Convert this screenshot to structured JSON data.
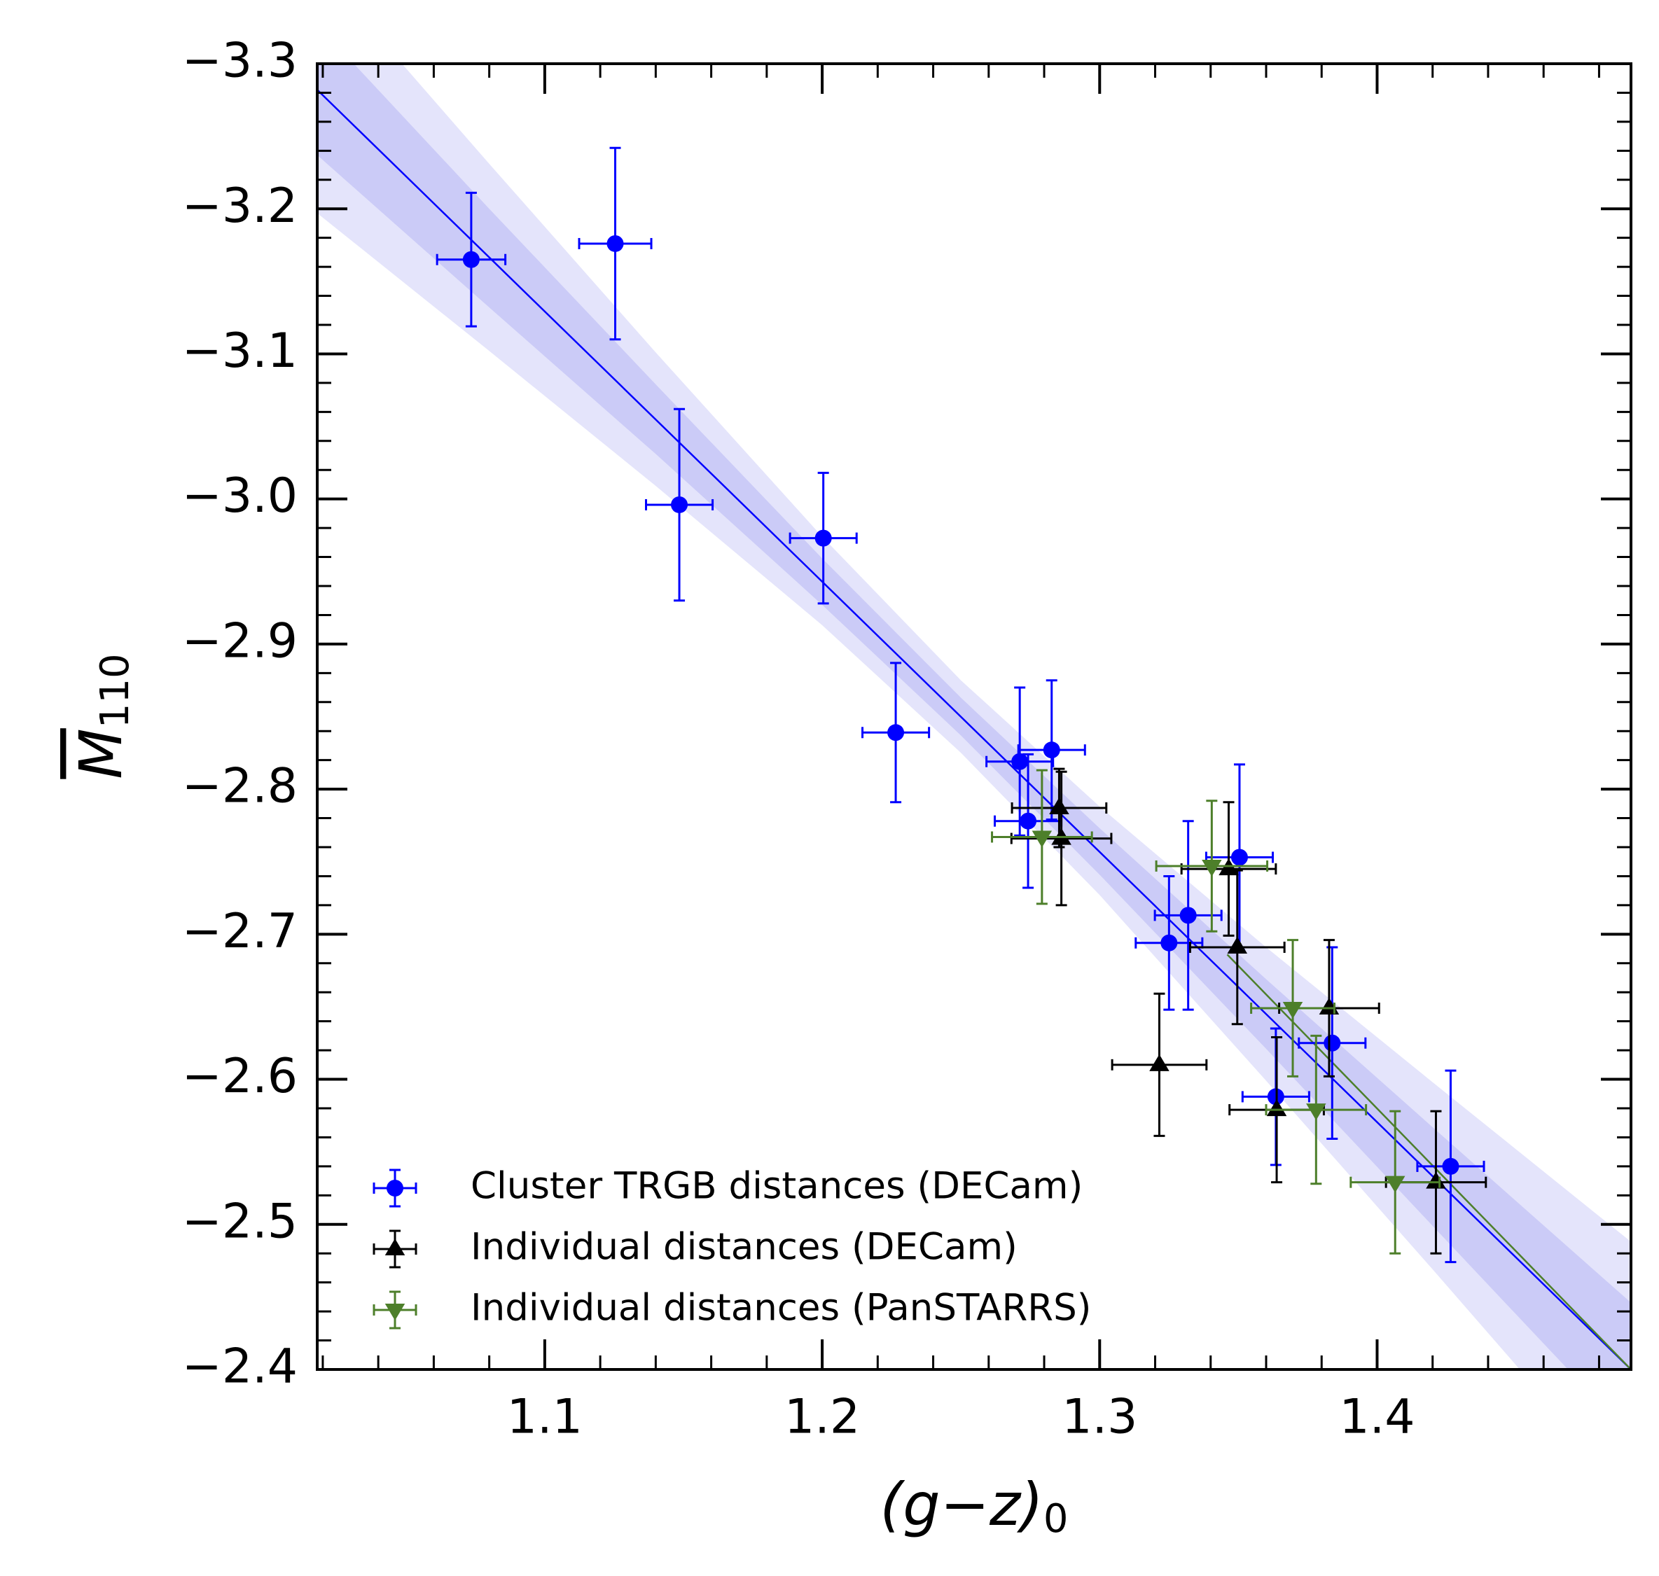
{
  "chart_data": {
    "type": "errorbar-scatter",
    "xlabel": {
      "text": "(g−z)",
      "subscript": "0"
    },
    "ylabel": {
      "symbol": "M",
      "subscript": "110"
    },
    "xlim": [
      1.018,
      1.4915
    ],
    "ylim": [
      -2.4,
      -3.3
    ],
    "xticks": [
      1.1,
      1.2,
      1.3,
      1.4
    ],
    "yticks": [
      {
        "value": -3.3,
        "label": "−3.3"
      },
      {
        "value": -3.2,
        "label": "−3.2"
      },
      {
        "value": -3.1,
        "label": "−3.1"
      },
      {
        "value": -3.0,
        "label": "−3.0"
      },
      {
        "value": -2.9,
        "label": "−2.9"
      },
      {
        "value": -2.8,
        "label": "−2.8"
      },
      {
        "value": -2.7,
        "label": "−2.7"
      },
      {
        "value": -2.6,
        "label": "−2.6"
      },
      {
        "value": -2.5,
        "label": "−2.5"
      },
      {
        "value": -2.4,
        "label": "−2.4"
      }
    ],
    "xminor": [
      1.02,
      1.04,
      1.06,
      1.08,
      1.12,
      1.14,
      1.16,
      1.18,
      1.22,
      1.24,
      1.26,
      1.28,
      1.32,
      1.34,
      1.36,
      1.38,
      1.42,
      1.44,
      1.46,
      1.48
    ],
    "yminor": [
      -3.28,
      -3.26,
      -3.24,
      -3.22,
      -3.18,
      -3.16,
      -3.14,
      -3.12,
      -3.08,
      -3.06,
      -3.04,
      -3.02,
      -2.98,
      -2.96,
      -2.94,
      -2.92,
      -2.88,
      -2.86,
      -2.84,
      -2.82,
      -2.78,
      -2.76,
      -2.74,
      -2.72,
      -2.68,
      -2.66,
      -2.64,
      -2.62,
      -2.58,
      -2.56,
      -2.54,
      -2.52,
      -2.48,
      -2.46,
      -2.44,
      -2.42
    ],
    "legend": "lower left",
    "bands": [
      {
        "color": "#e4e4fb",
        "x": [
          1.018,
          1.08,
          1.14,
          1.2,
          1.25,
          1.3,
          1.36,
          1.42,
          1.4915
        ],
        "lower": [
          -3.367,
          -3.231,
          -3.101,
          -2.974,
          -2.875,
          -2.788,
          -2.691,
          -2.598,
          -2.488
        ],
        "upper": [
          -3.197,
          -3.102,
          -3.009,
          -2.913,
          -2.825,
          -2.727,
          -2.599,
          -2.469,
          -2.312
        ]
      },
      {
        "color": "#cbcbf7",
        "x": [
          1.018,
          1.08,
          1.14,
          1.2,
          1.25,
          1.3,
          1.36,
          1.42,
          1.4915
        ],
        "lower": [
          -3.327,
          -3.2,
          -3.079,
          -2.959,
          -2.863,
          -2.773,
          -2.669,
          -2.567,
          -2.446
        ],
        "upper": [
          -3.237,
          -3.132,
          -3.031,
          -2.927,
          -2.837,
          -2.741,
          -2.621,
          -2.499,
          -2.354
        ]
      }
    ],
    "fits": [
      {
        "color": "#0000ff",
        "x": [
          1.018,
          1.4915
        ],
        "values": [
          -3.282,
          -2.4
        ]
      },
      {
        "color": "#4d7f2a",
        "x": [
          1.346,
          1.4915
        ],
        "values": [
          -2.686,
          -2.4
        ]
      }
    ],
    "series": [
      {
        "name": "Cluster TRGB distances (DECam)",
        "color": "#0000ff",
        "marker": "circle",
        "x": [
          1.0735,
          1.1254,
          1.1485,
          1.2004,
          1.2265,
          1.2712,
          1.2827,
          1.2742,
          1.3504,
          1.3319,
          1.325,
          1.3838,
          1.3635,
          1.4265
        ],
        "values": [
          -3.165,
          -3.176,
          -2.996,
          -2.973,
          -2.839,
          -2.819,
          -2.827,
          -2.778,
          -2.753,
          -2.713,
          -2.694,
          -2.625,
          -2.588,
          -2.54
        ],
        "xerr": [
          0.0123,
          0.013,
          0.012,
          0.012,
          0.012,
          0.012,
          0.012,
          0.012,
          0.012,
          0.012,
          0.012,
          0.012,
          0.012,
          0.012
        ],
        "yerr": [
          0.046,
          0.066,
          0.066,
          0.045,
          0.048,
          0.051,
          0.048,
          0.046,
          0.064,
          0.065,
          0.046,
          0.066,
          0.047,
          0.066
        ]
      },
      {
        "name": "Individual distances (DECam)",
        "color": "#000000",
        "marker": "triangle-up",
        "x": [
          1.2854,
          1.2862,
          1.3465,
          1.3496,
          1.3215,
          1.3827,
          1.3638,
          1.4212
        ],
        "values": [
          -2.787,
          -2.766,
          -2.745,
          -2.691,
          -2.61,
          -2.649,
          -2.579,
          -2.529
        ],
        "xerr": [
          0.017,
          0.018,
          0.017,
          0.017,
          0.017,
          0.018,
          0.017,
          0.018
        ],
        "yerr": [
          0.027,
          0.046,
          0.046,
          0.053,
          0.049,
          0.047,
          0.05,
          0.049
        ]
      },
      {
        "name": "Individual distances (PanSTARRS)",
        "color": "#4d7f2a",
        "marker": "triangle-down",
        "x": [
          1.2792,
          1.3404,
          1.3696,
          1.378,
          1.4065
        ],
        "values": [
          -2.767,
          -2.747,
          -2.649,
          -2.579,
          -2.529
        ],
        "xerr": [
          0.018,
          0.02,
          0.015,
          0.018,
          0.016
        ],
        "yerr": [
          0.046,
          0.045,
          0.047,
          0.051,
          0.049
        ]
      }
    ]
  }
}
